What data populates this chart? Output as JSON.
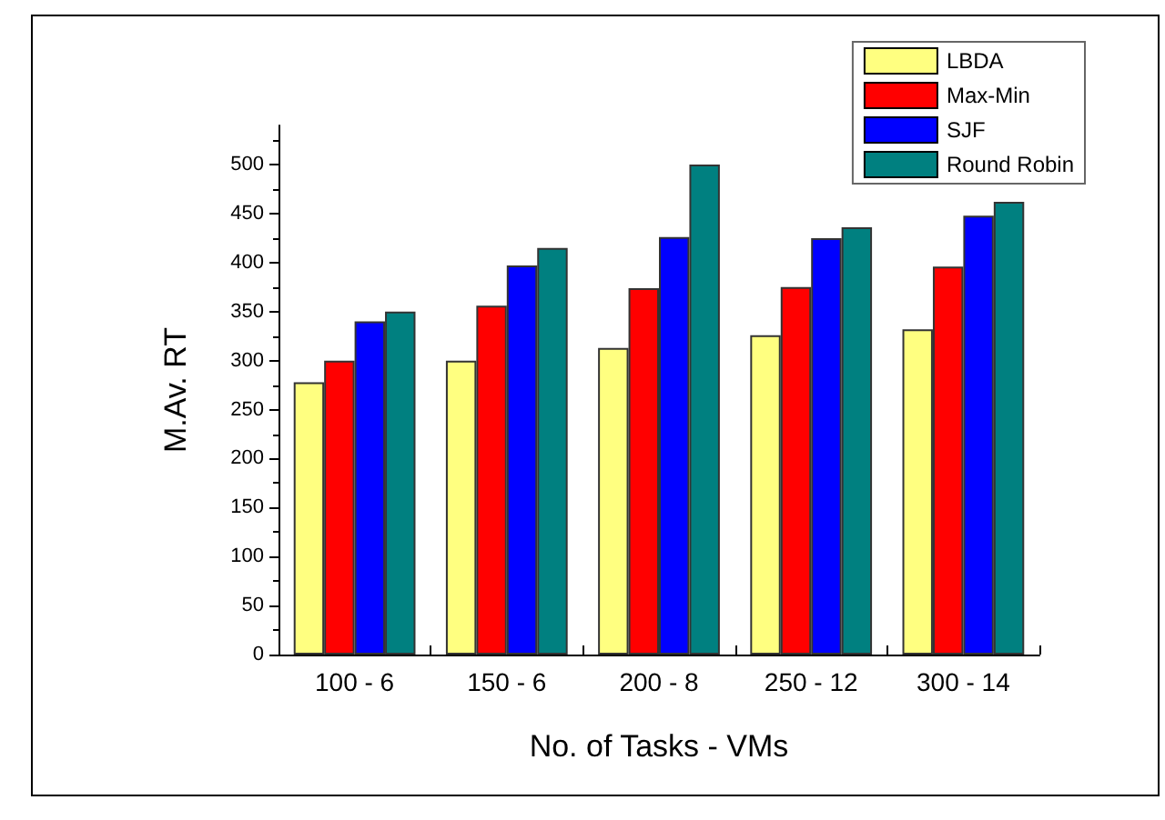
{
  "chart_data": {
    "type": "bar",
    "xlabel": "No. of Tasks - VMs",
    "ylabel": "M.Av. RT",
    "categories": [
      "100 - 6",
      "150 - 6",
      "200 - 8",
      "250 - 12",
      "300 - 14"
    ],
    "series": [
      {
        "name": "LBDA",
        "color": "#ffff80",
        "values": [
          278,
          300,
          313,
          326,
          332
        ]
      },
      {
        "name": "Max-Min",
        "color": "#ff0000",
        "values": [
          300,
          356,
          374,
          375,
          396
        ]
      },
      {
        "name": "SJF",
        "color": "#0000ff",
        "values": [
          340,
          397,
          426,
          425,
          448
        ]
      },
      {
        "name": "Round Robin",
        "color": "#008080",
        "values": [
          350,
          415,
          500,
          436,
          462
        ]
      }
    ],
    "ylim": [
      0,
      540
    ],
    "yticks": [
      0,
      50,
      100,
      150,
      200,
      250,
      300,
      350,
      400,
      450,
      500
    ],
    "grid": false,
    "legend": "top right"
  }
}
